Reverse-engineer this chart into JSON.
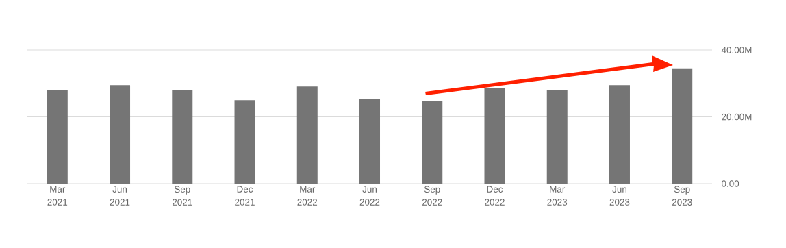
{
  "chart_data": {
    "type": "bar",
    "categories": [
      "Mar 2021",
      "Jun 2021",
      "Sep 2021",
      "Dec 2021",
      "Mar 2022",
      "Jun 2022",
      "Sep 2022",
      "Dec 2022",
      "Mar 2023",
      "Jun 2023",
      "Sep 2023"
    ],
    "values": [
      28.1,
      29.5,
      28.1,
      25.0,
      29.1,
      25.4,
      24.6,
      28.7,
      28.1,
      29.5,
      34.5
    ],
    "color": "#757575",
    "ylim": [
      0,
      40
    ],
    "yticks": [
      {
        "value": 0,
        "label": "0.00"
      },
      {
        "value": 20,
        "label": "20.00M"
      },
      {
        "value": 40,
        "label": "40.00M"
      }
    ],
    "grid": "y"
  }
}
